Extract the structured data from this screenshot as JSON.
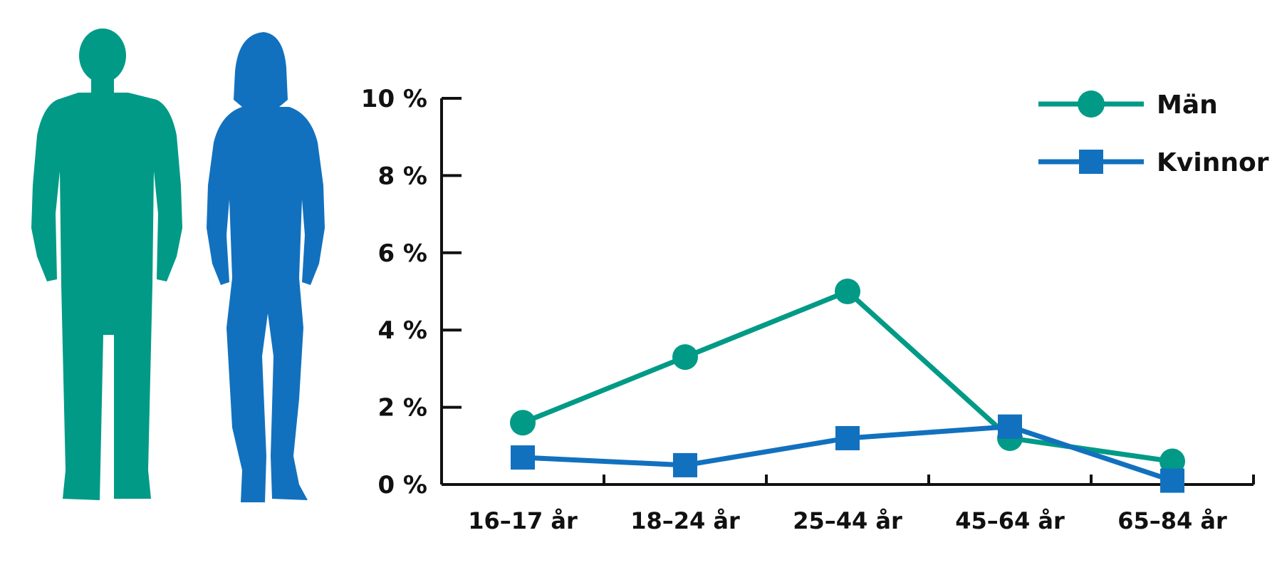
{
  "chart_data": {
    "type": "line",
    "categories": [
      "16–17 år",
      "18–24 år",
      "25–44 år",
      "45–64 år",
      "65–84 år"
    ],
    "series": [
      {
        "name": "Män",
        "values": [
          1.6,
          3.3,
          5.0,
          1.2,
          0.6
        ],
        "color": "#009a86",
        "marker": "circle"
      },
      {
        "name": "Kvinnor",
        "values": [
          0.7,
          0.5,
          1.2,
          1.5,
          0.1
        ],
        "color": "#1271be",
        "marker": "square"
      }
    ],
    "ylim": [
      0,
      10
    ],
    "yticks": [
      0,
      2,
      4,
      6,
      8,
      10
    ],
    "ytick_labels": [
      "0 %",
      "2 %",
      "4 %",
      "6 %",
      "8 %",
      "10 %"
    ],
    "xlabel": "",
    "ylabel": "",
    "grid": false,
    "legend_position": "top-right"
  },
  "illustration": {
    "man_icon": "man-silhouette-icon",
    "woman_icon": "woman-silhouette-icon"
  }
}
